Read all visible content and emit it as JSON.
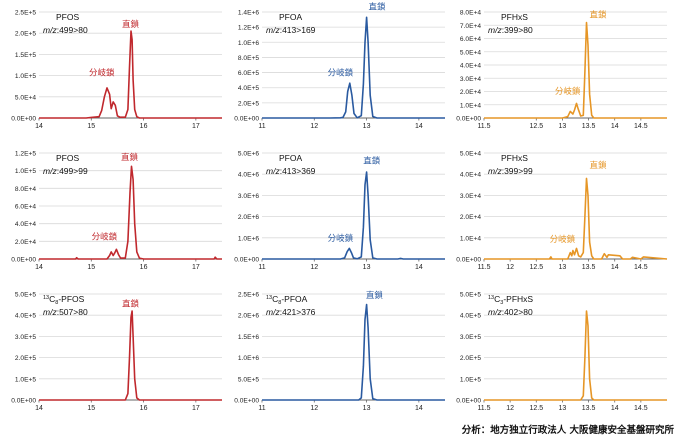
{
  "credit": "分析：地方独立行政法人 大阪健康安全基盤研究所",
  "chart_data": [
    {
      "type": "line",
      "panel": "pfos-1",
      "color": "#c0282d",
      "compound": "PFOS",
      "transition": "499>80",
      "isotope": "",
      "xlim": [
        14,
        17.5
      ],
      "xticks": [
        "14",
        "15",
        "16",
        "17"
      ],
      "ylim": [
        0,
        250000
      ],
      "yticks": [
        "0.0E+00",
        "5.0E+4",
        "1.0E+5",
        "1.5E+5",
        "2.0E+5",
        "2.5E+5"
      ],
      "x": [
        14.0,
        14.9,
        15.0,
        15.15,
        15.2,
        15.25,
        15.3,
        15.35,
        15.38,
        15.42,
        15.46,
        15.5,
        15.55,
        15.65,
        15.7,
        15.73,
        15.76,
        15.78,
        15.8,
        15.83,
        15.87,
        15.92,
        16.0,
        16.5,
        17.0,
        17.5
      ],
      "y": [
        0,
        0,
        1500,
        3000,
        18000,
        50000,
        71000,
        56000,
        22000,
        38000,
        30000,
        5000,
        2000,
        2000,
        20000,
        120000,
        205000,
        185000,
        90000,
        20000,
        3000,
        0,
        0,
        0,
        0,
        0
      ],
      "annotations": [
        {
          "text": "直鎖",
          "x": 15.75,
          "y": 215000
        },
        {
          "text": "分岐鎖",
          "x": 15.2,
          "y": 100000
        }
      ]
    },
    {
      "type": "line",
      "panel": "pfoa-1",
      "color": "#2a5aa0",
      "compound": "PFOA",
      "transition": "413>169",
      "isotope": "",
      "xlim": [
        11,
        14.5
      ],
      "xticks": [
        "11",
        "12",
        "13",
        "14"
      ],
      "ylim": [
        0,
        1400000
      ],
      "yticks": [
        "0.0E+00",
        "2.0E+5",
        "4.0E+5",
        "6.0E+5",
        "8.0E+5",
        "1.0E+6",
        "1.2E+6",
        "1.4E+6"
      ],
      "x": [
        11.0,
        12.3,
        12.5,
        12.55,
        12.6,
        12.64,
        12.68,
        12.72,
        12.76,
        12.82,
        12.9,
        12.94,
        12.97,
        13.0,
        13.03,
        13.07,
        13.12,
        13.2,
        14.0,
        14.5
      ],
      "y": [
        0,
        0,
        3000,
        8000,
        80000,
        350000,
        460000,
        300000,
        60000,
        3000,
        30000,
        450000,
        1000000,
        1330000,
        1000000,
        300000,
        20000,
        0,
        0,
        0
      ],
      "annotations": [
        {
          "text": "直鎖",
          "x": 13.2,
          "y": 1430000
        },
        {
          "text": "分岐鎖",
          "x": 12.5,
          "y": 560000
        }
      ]
    },
    {
      "type": "line",
      "panel": "pfhxs-1",
      "color": "#e69626",
      "compound": "PFHxS",
      "transition": "399>80",
      "isotope": "",
      "xlim": [
        11.5,
        15
      ],
      "xticks": [
        "11.5",
        "12.5",
        "13",
        "13.5",
        "14",
        "14.5"
      ],
      "ylim": [
        0,
        80000
      ],
      "yticks": [
        "0.0E+00",
        "1.0E+4",
        "2.0E+4",
        "3.0E+4",
        "4.0E+4",
        "5.0E+4",
        "6.0E+4",
        "7.0E+4",
        "8.0E+4"
      ],
      "x": [
        11.5,
        13.0,
        13.1,
        13.15,
        13.2,
        13.23,
        13.27,
        13.3,
        13.35,
        13.4,
        13.43,
        13.46,
        13.49,
        13.52,
        13.56,
        13.6,
        14.0,
        15.0
      ],
      "y": [
        0,
        0,
        1000,
        5000,
        3000,
        6000,
        11000,
        7000,
        1500,
        2000,
        35000,
        72000,
        55000,
        18000,
        2000,
        0,
        0,
        0
      ],
      "annotations": [
        {
          "text": "直鎖",
          "x": 13.68,
          "y": 76000
        },
        {
          "text": "分岐鎖",
          "x": 13.1,
          "y": 18000
        }
      ]
    },
    {
      "type": "line",
      "panel": "pfos-2",
      "color": "#c0282d",
      "compound": "PFOS",
      "transition": "499>99",
      "isotope": "",
      "xlim": [
        14,
        17.5
      ],
      "xticks": [
        "14",
        "15",
        "16",
        "17"
      ],
      "ylim": [
        0,
        120000
      ],
      "yticks": [
        "0.0E+00",
        "2.0E+4",
        "4.0E+4",
        "6.0E+4",
        "8.0E+4",
        "1.0E+5",
        "1.2E+5"
      ],
      "x": [
        14.0,
        14.7,
        14.72,
        14.75,
        14.9,
        15.3,
        15.35,
        15.38,
        15.42,
        15.45,
        15.48,
        15.52,
        15.56,
        15.65,
        15.7,
        15.74,
        15.77,
        15.8,
        15.83,
        15.87,
        15.92,
        16.0,
        17.0,
        17.35,
        17.37,
        17.4,
        17.5
      ],
      "y": [
        0,
        0,
        1500,
        0,
        0,
        0,
        4000,
        8000,
        4000,
        7000,
        11000,
        5000,
        1000,
        1000,
        20000,
        75000,
        105000,
        90000,
        40000,
        8000,
        1000,
        0,
        0,
        0,
        2000,
        0,
        0
      ],
      "annotations": [
        {
          "text": "直鎖",
          "x": 15.73,
          "y": 112000
        },
        {
          "text": "分岐鎖",
          "x": 15.25,
          "y": 22000
        }
      ]
    },
    {
      "type": "line",
      "panel": "pfoa-2",
      "color": "#2a5aa0",
      "compound": "PFOA",
      "transition": "413>369",
      "isotope": "",
      "xlim": [
        11,
        14.5
      ],
      "xticks": [
        "11",
        "12",
        "13",
        "14"
      ],
      "ylim": [
        0,
        5000000
      ],
      "yticks": [
        "0.0E+00",
        "1.0E+6",
        "2.0E+6",
        "3.0E+6",
        "4.0E+6",
        "5.0E+6"
      ],
      "x": [
        11.0,
        12.5,
        12.58,
        12.63,
        12.67,
        12.71,
        12.75,
        12.82,
        12.9,
        12.94,
        12.97,
        13.0,
        13.03,
        13.07,
        13.12,
        13.2,
        13.6,
        13.65,
        13.7,
        14.0,
        14.5
      ],
      "y": [
        0,
        0,
        50000,
        350000,
        500000,
        300000,
        50000,
        10000,
        100000,
        1500000,
        3500000,
        4100000,
        3000000,
        900000,
        50000,
        0,
        0,
        30000,
        0,
        0,
        0
      ],
      "annotations": [
        {
          "text": "直鎖",
          "x": 13.1,
          "y": 4500000
        },
        {
          "text": "分岐鎖",
          "x": 12.5,
          "y": 850000
        }
      ]
    },
    {
      "type": "line",
      "panel": "pfhxs-2",
      "color": "#e69626",
      "compound": "PFHxS",
      "transition": "399>99",
      "isotope": "",
      "xlim": [
        11.5,
        15
      ],
      "xticks": [
        "11.5",
        "12",
        "12.5",
        "13",
        "13.5",
        "14",
        "14.5"
      ],
      "ylim": [
        0,
        50000
      ],
      "yticks": [
        "0.0E+00",
        "1.0E+4",
        "2.0E+4",
        "3.0E+4",
        "4.0E+4",
        "5.0E+4"
      ],
      "x": [
        11.5,
        12.75,
        12.78,
        12.8,
        13.1,
        13.15,
        13.18,
        13.2,
        13.23,
        13.27,
        13.31,
        13.35,
        13.4,
        13.43,
        13.46,
        13.49,
        13.52,
        13.56,
        13.6,
        13.75,
        13.8,
        13.85,
        13.88,
        14.1,
        14.15,
        14.3,
        14.34,
        14.5,
        14.55,
        15.0
      ],
      "y": [
        0,
        0,
        1000,
        0,
        0,
        3000,
        1500,
        4000,
        2000,
        5000,
        1500,
        1000,
        3000,
        20000,
        38000,
        30000,
        8000,
        1500,
        0,
        0,
        2500,
        800,
        2000,
        1500,
        0,
        0,
        800,
        0,
        1000,
        0
      ],
      "annotations": [
        {
          "text": "直鎖",
          "x": 13.68,
          "y": 43000
        },
        {
          "text": "分岐鎖",
          "x": 13.0,
          "y": 8000
        }
      ]
    },
    {
      "type": "line",
      "panel": "pfos-3",
      "color": "#c0282d",
      "compound": "-PFOS",
      "transition": "507>80",
      "isotope": "13C8",
      "xlim": [
        14,
        17.5
      ],
      "xticks": [
        "14",
        "15",
        "16",
        "17"
      ],
      "ylim": [
        0,
        500000
      ],
      "yticks": [
        "0.0E+00",
        "1.0E+5",
        "2.0E+5",
        "3.0E+5",
        "4.0E+5",
        "5.0E+5"
      ],
      "x": [
        14.0,
        15.65,
        15.7,
        15.73,
        15.76,
        15.78,
        15.8,
        15.83,
        15.87,
        15.92,
        16.0,
        17.5
      ],
      "y": [
        0,
        0,
        30000,
        200000,
        390000,
        420000,
        300000,
        100000,
        10000,
        0,
        0,
        0
      ],
      "annotations": [
        {
          "text": "直鎖",
          "x": 15.75,
          "y": 440000
        }
      ]
    },
    {
      "type": "line",
      "panel": "pfoa-3",
      "color": "#2a5aa0",
      "compound": "-PFOA",
      "transition": "421>376",
      "isotope": "13C8",
      "xlim": [
        11,
        14.5
      ],
      "xticks": [
        "11",
        "12",
        "13",
        "14"
      ],
      "ylim": [
        0,
        2500000
      ],
      "yticks": [
        "0.0E+00",
        "5.0E+5",
        "1.0E+6",
        "1.5E+6",
        "2.0E+6",
        "2.5E+6"
      ],
      "x": [
        11.0,
        12.85,
        12.9,
        12.94,
        12.97,
        13.0,
        13.03,
        13.07,
        13.12,
        13.2,
        14.5
      ],
      "y": [
        0,
        0,
        50000,
        800000,
        1900000,
        2250000,
        1700000,
        500000,
        30000,
        0,
        0
      ],
      "annotations": [
        {
          "text": "直鎖",
          "x": 13.15,
          "y": 2400000
        }
      ]
    },
    {
      "type": "line",
      "panel": "pfhxs-3",
      "color": "#e69626",
      "compound": "-PFHxS",
      "transition": "402>80",
      "isotope": "13C3",
      "xlim": [
        11.5,
        15
      ],
      "xticks": [
        "11.5",
        "12",
        "12.5",
        "13",
        "13.5",
        "14",
        "14.5"
      ],
      "ylim": [
        0,
        500000
      ],
      "yticks": [
        "0.0E+00",
        "1.0E+5",
        "2.0E+5",
        "3.0E+5",
        "4.0E+5",
        "5.0E+5"
      ],
      "x": [
        11.5,
        13.35,
        13.4,
        13.43,
        13.46,
        13.49,
        13.52,
        13.56,
        13.6,
        15.0
      ],
      "y": [
        0,
        0,
        20000,
        200000,
        420000,
        350000,
        100000,
        10000,
        0,
        0
      ],
      "annotations": []
    }
  ]
}
